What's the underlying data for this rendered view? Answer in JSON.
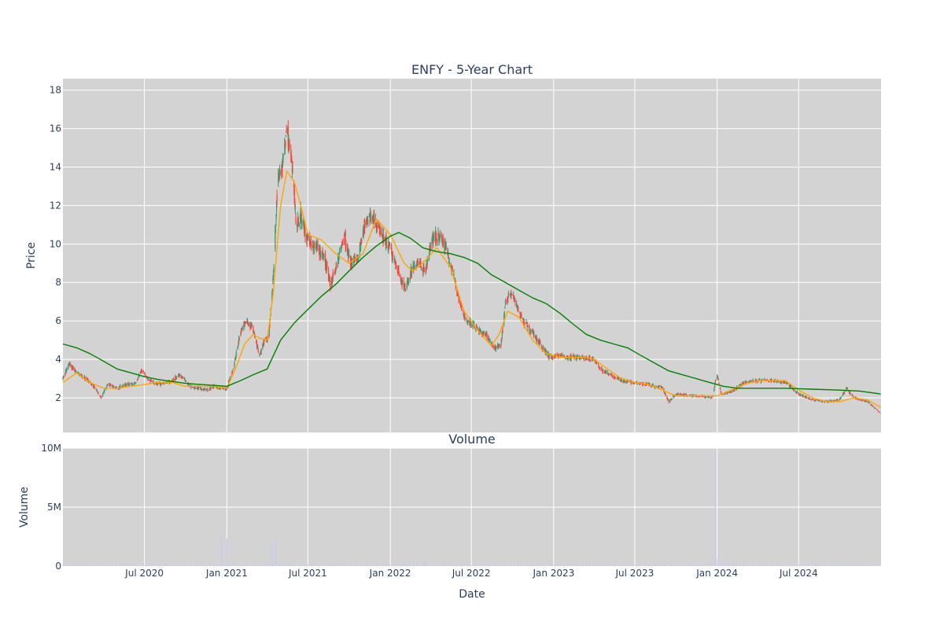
{
  "chart_data": {
    "type": "candlestick",
    "title": "ENFY - 5-Year Chart",
    "price_panel": {
      "ylabel": "Price",
      "ylim": [
        0.2,
        18.6
      ],
      "yticks": [
        2,
        4,
        6,
        8,
        10,
        12,
        14,
        16,
        18
      ],
      "grid": true,
      "background": "#d3d3d3",
      "increasing_color": "#3d9970",
      "decreasing_color": "#ff4136",
      "series": [
        {
          "name": "",
          "kind": "moving_average_short",
          "color": "#ffa500",
          "points": [
            [
              "2020-01-01",
              2.8
            ],
            [
              "2020-02-01",
              3.3
            ],
            [
              "2020-03-01",
              2.8
            ],
            [
              "2020-04-01",
              2.5
            ],
            [
              "2020-05-01",
              2.5
            ],
            [
              "2020-06-01",
              2.6
            ],
            [
              "2020-07-01",
              2.7
            ],
            [
              "2020-08-01",
              2.8
            ],
            [
              "2020-09-01",
              2.8
            ],
            [
              "2020-10-01",
              2.6
            ],
            [
              "2020-11-01",
              2.6
            ],
            [
              "2020-12-01",
              2.6
            ],
            [
              "2021-01-01",
              2.5
            ],
            [
              "2021-01-20",
              3.5
            ],
            [
              "2021-02-10",
              4.8
            ],
            [
              "2021-03-01",
              5.3
            ],
            [
              "2021-03-15",
              5.1
            ],
            [
              "2021-04-01",
              5.0
            ],
            [
              "2021-04-15",
              7.5
            ],
            [
              "2021-05-01",
              12.0
            ],
            [
              "2021-05-15",
              13.8
            ],
            [
              "2021-06-01",
              13.2
            ],
            [
              "2021-06-15",
              12.0
            ],
            [
              "2021-07-01",
              10.5
            ],
            [
              "2021-08-01",
              10.2
            ],
            [
              "2021-09-01",
              9.5
            ],
            [
              "2021-10-01",
              9.0
            ],
            [
              "2021-11-01",
              9.5
            ],
            [
              "2021-12-01",
              11.3
            ],
            [
              "2022-01-01",
              10.5
            ],
            [
              "2022-02-01",
              9.0
            ],
            [
              "2022-02-20",
              8.6
            ],
            [
              "2022-03-15",
              9.0
            ],
            [
              "2022-04-15",
              9.8
            ],
            [
              "2022-05-15",
              8.8
            ],
            [
              "2022-06-15",
              6.5
            ],
            [
              "2022-07-15",
              5.5
            ],
            [
              "2022-08-15",
              4.7
            ],
            [
              "2022-09-01",
              5.3
            ],
            [
              "2022-09-20",
              6.5
            ],
            [
              "2022-10-15",
              6.2
            ],
            [
              "2022-11-15",
              5.0
            ],
            [
              "2022-12-15",
              4.3
            ],
            [
              "2023-01-15",
              4.1
            ],
            [
              "2023-02-15",
              4.1
            ],
            [
              "2023-03-15",
              4.1
            ],
            [
              "2023-04-01",
              4.0
            ],
            [
              "2023-05-01",
              3.5
            ],
            [
              "2023-06-01",
              3.0
            ],
            [
              "2023-07-01",
              2.8
            ],
            [
              "2023-08-01",
              2.7
            ],
            [
              "2023-09-01",
              2.4
            ],
            [
              "2023-10-01",
              2.1
            ],
            [
              "2023-11-01",
              2.1
            ],
            [
              "2023-12-01",
              2.1
            ],
            [
              "2024-01-01",
              2.1
            ],
            [
              "2024-02-01",
              2.4
            ],
            [
              "2024-03-01",
              2.7
            ],
            [
              "2024-04-01",
              2.9
            ],
            [
              "2024-05-01",
              2.9
            ],
            [
              "2024-06-01",
              2.9
            ],
            [
              "2024-07-01",
              2.4
            ],
            [
              "2024-08-01",
              2.0
            ],
            [
              "2024-09-01",
              1.8
            ],
            [
              "2024-10-01",
              1.8
            ],
            [
              "2024-11-01",
              2.0
            ],
            [
              "2024-12-01",
              1.9
            ],
            [
              "2024-12-31",
              1.5
            ]
          ]
        },
        {
          "name": "",
          "kind": "moving_average_long",
          "color": "#008000",
          "points": [
            [
              "2020-01-01",
              4.8
            ],
            [
              "2020-02-01",
              4.6
            ],
            [
              "2020-03-01",
              4.3
            ],
            [
              "2020-04-01",
              3.9
            ],
            [
              "2020-05-01",
              3.5
            ],
            [
              "2020-06-01",
              3.3
            ],
            [
              "2020-07-01",
              3.1
            ],
            [
              "2020-08-01",
              2.95
            ],
            [
              "2020-09-01",
              2.85
            ],
            [
              "2020-10-01",
              2.75
            ],
            [
              "2020-11-01",
              2.7
            ],
            [
              "2020-12-01",
              2.65
            ],
            [
              "2021-01-01",
              2.6
            ],
            [
              "2021-02-01",
              2.9
            ],
            [
              "2021-03-01",
              3.2
            ],
            [
              "2021-04-01",
              3.5
            ],
            [
              "2021-05-01",
              5.0
            ],
            [
              "2021-06-01",
              5.9
            ],
            [
              "2021-07-01",
              6.6
            ],
            [
              "2021-08-01",
              7.3
            ],
            [
              "2021-09-01",
              7.9
            ],
            [
              "2021-10-01",
              8.6
            ],
            [
              "2021-11-01",
              9.3
            ],
            [
              "2021-12-01",
              9.9
            ],
            [
              "2022-01-01",
              10.4
            ],
            [
              "2022-01-20",
              10.6
            ],
            [
              "2022-02-15",
              10.3
            ],
            [
              "2022-03-15",
              9.8
            ],
            [
              "2022-04-15",
              9.6
            ],
            [
              "2022-05-15",
              9.5
            ],
            [
              "2022-06-15",
              9.3
            ],
            [
              "2022-07-15",
              9.0
            ],
            [
              "2022-08-15",
              8.4
            ],
            [
              "2022-09-15",
              8.0
            ],
            [
              "2022-10-15",
              7.6
            ],
            [
              "2022-11-15",
              7.2
            ],
            [
              "2022-12-15",
              6.9
            ],
            [
              "2023-01-15",
              6.4
            ],
            [
              "2023-02-15",
              5.8
            ],
            [
              "2023-03-15",
              5.3
            ],
            [
              "2023-04-15",
              5.0
            ],
            [
              "2023-05-15",
              4.8
            ],
            [
              "2023-06-15",
              4.6
            ],
            [
              "2023-07-15",
              4.2
            ],
            [
              "2023-08-15",
              3.8
            ],
            [
              "2023-09-15",
              3.4
            ],
            [
              "2023-10-15",
              3.2
            ],
            [
              "2023-11-15",
              3.0
            ],
            [
              "2023-12-15",
              2.8
            ],
            [
              "2024-01-15",
              2.6
            ],
            [
              "2024-02-15",
              2.5
            ],
            [
              "2024-04-01",
              2.5
            ],
            [
              "2024-06-01",
              2.5
            ],
            [
              "2024-08-01",
              2.45
            ],
            [
              "2024-10-01",
              2.4
            ],
            [
              "2024-11-15",
              2.35
            ],
            [
              "2024-12-31",
              2.2
            ]
          ]
        }
      ]
    },
    "volume_panel": {
      "title": "Volume",
      "ylabel": "Volume",
      "ylim": [
        0,
        10000000
      ],
      "yticks": [
        0,
        5000000,
        10000000
      ],
      "ytick_labels": [
        "0",
        "5M",
        "10M"
      ],
      "grid": true,
      "background": "#d3d3d3",
      "bar_color": "#c8c8f0",
      "spikes": [
        [
          "2020-12-20",
          2500000
        ],
        [
          "2021-01-01",
          2300000
        ],
        [
          "2021-04-12",
          1800000
        ],
        [
          "2021-04-20",
          2200000
        ],
        [
          "2022-03-20",
          400000
        ],
        [
          "2023-12-28",
          9700000
        ],
        [
          "2024-01-02",
          600000
        ]
      ]
    },
    "x": {
      "xlabel": "Date",
      "range": [
        "2020-01-01",
        "2025-01-01"
      ],
      "ticks": [
        "2020-07-01",
        "2021-01-01",
        "2021-07-01",
        "2022-01-01",
        "2022-07-01",
        "2023-01-01",
        "2023-07-01",
        "2024-01-01",
        "2024-07-01"
      ],
      "tick_labels": [
        "Jul 2020",
        "Jan 2021",
        "Jul 2021",
        "Jan 2022",
        "Jul 2022",
        "Jan 2023",
        "Jul 2023",
        "Jan 2024",
        "Jul 2024"
      ]
    },
    "price_path": [
      [
        "2020-01-01",
        3.0
      ],
      [
        "2020-01-15",
        3.8
      ],
      [
        "2020-02-01",
        3.3
      ],
      [
        "2020-02-20",
        3.0
      ],
      [
        "2020-03-10",
        2.6
      ],
      [
        "2020-03-25",
        2.0
      ],
      [
        "2020-04-10",
        2.7
      ],
      [
        "2020-05-01",
        2.5
      ],
      [
        "2020-05-20",
        2.7
      ],
      [
        "2020-06-10",
        2.7
      ],
      [
        "2020-06-25",
        3.5
      ],
      [
        "2020-07-10",
        2.9
      ],
      [
        "2020-08-01",
        2.7
      ],
      [
        "2020-09-01",
        2.9
      ],
      [
        "2020-09-20",
        3.2
      ],
      [
        "2020-10-10",
        2.6
      ],
      [
        "2020-11-01",
        2.5
      ],
      [
        "2020-11-20",
        2.4
      ],
      [
        "2020-12-01",
        2.6
      ],
      [
        "2020-12-15",
        2.5
      ],
      [
        "2021-01-01",
        2.5
      ],
      [
        "2021-01-15",
        3.5
      ],
      [
        "2021-02-01",
        5.5
      ],
      [
        "2021-02-15",
        6.0
      ],
      [
        "2021-03-01",
        5.5
      ],
      [
        "2021-03-15",
        4.2
      ],
      [
        "2021-03-25",
        5.0
      ],
      [
        "2021-04-05",
        5.2
      ],
      [
        "2021-04-15",
        8.5
      ],
      [
        "2021-04-25",
        13.5
      ],
      [
        "2021-05-05",
        14.0
      ],
      [
        "2021-05-15",
        16.0
      ],
      [
        "2021-05-25",
        14.5
      ],
      [
        "2021-06-05",
        11.0
      ],
      [
        "2021-06-15",
        11.5
      ],
      [
        "2021-06-25",
        10.5
      ],
      [
        "2021-07-05",
        10.0
      ],
      [
        "2021-07-20",
        9.8
      ],
      [
        "2021-08-05",
        9.5
      ],
      [
        "2021-08-20",
        8.0
      ],
      [
        "2021-09-05",
        9.0
      ],
      [
        "2021-09-20",
        10.5
      ],
      [
        "2021-10-05",
        9.0
      ],
      [
        "2021-10-20",
        9.2
      ],
      [
        "2021-11-05",
        11.0
      ],
      [
        "2021-11-20",
        11.5
      ],
      [
        "2021-12-05",
        10.8
      ],
      [
        "2021-12-20",
        10.3
      ],
      [
        "2022-01-05",
        9.5
      ],
      [
        "2022-01-20",
        8.5
      ],
      [
        "2022-02-05",
        7.6
      ],
      [
        "2022-02-20",
        8.8
      ],
      [
        "2022-03-05",
        9.0
      ],
      [
        "2022-03-20",
        8.5
      ],
      [
        "2022-04-05",
        10.2
      ],
      [
        "2022-04-20",
        10.5
      ],
      [
        "2022-05-05",
        9.8
      ],
      [
        "2022-05-20",
        8.5
      ],
      [
        "2022-06-05",
        7.0
      ],
      [
        "2022-06-20",
        6.0
      ],
      [
        "2022-07-05",
        5.8
      ],
      [
        "2022-07-20",
        5.4
      ],
      [
        "2022-08-05",
        5.2
      ],
      [
        "2022-08-20",
        4.6
      ],
      [
        "2022-09-05",
        4.7
      ],
      [
        "2022-09-15",
        7.0
      ],
      [
        "2022-09-30",
        7.5
      ],
      [
        "2022-10-10",
        6.8
      ],
      [
        "2022-10-25",
        6.0
      ],
      [
        "2022-11-10",
        5.5
      ],
      [
        "2022-11-25",
        5.0
      ],
      [
        "2022-12-10",
        4.5
      ],
      [
        "2022-12-25",
        4.1
      ],
      [
        "2023-01-10",
        4.2
      ],
      [
        "2023-02-01",
        4.1
      ],
      [
        "2023-03-01",
        4.1
      ],
      [
        "2023-04-01",
        4.0
      ],
      [
        "2023-04-20",
        3.4
      ],
      [
        "2023-05-10",
        3.2
      ],
      [
        "2023-06-01",
        2.9
      ],
      [
        "2023-07-01",
        2.8
      ],
      [
        "2023-08-01",
        2.7
      ],
      [
        "2023-09-01",
        2.5
      ],
      [
        "2023-09-15",
        1.8
      ],
      [
        "2023-10-01",
        2.2
      ],
      [
        "2023-11-01",
        2.1
      ],
      [
        "2023-12-01",
        2.1
      ],
      [
        "2023-12-20",
        2.0
      ],
      [
        "2024-01-01",
        3.2
      ],
      [
        "2024-01-10",
        2.2
      ],
      [
        "2024-02-01",
        2.3
      ],
      [
        "2024-03-01",
        2.8
      ],
      [
        "2024-04-01",
        2.9
      ],
      [
        "2024-05-01",
        2.9
      ],
      [
        "2024-06-01",
        2.8
      ],
      [
        "2024-07-01",
        2.2
      ],
      [
        "2024-08-01",
        1.9
      ],
      [
        "2024-09-01",
        1.8
      ],
      [
        "2024-10-01",
        1.9
      ],
      [
        "2024-10-15",
        2.5
      ],
      [
        "2024-11-01",
        2.0
      ],
      [
        "2024-12-01",
        1.8
      ],
      [
        "2024-12-31",
        1.2
      ]
    ]
  }
}
